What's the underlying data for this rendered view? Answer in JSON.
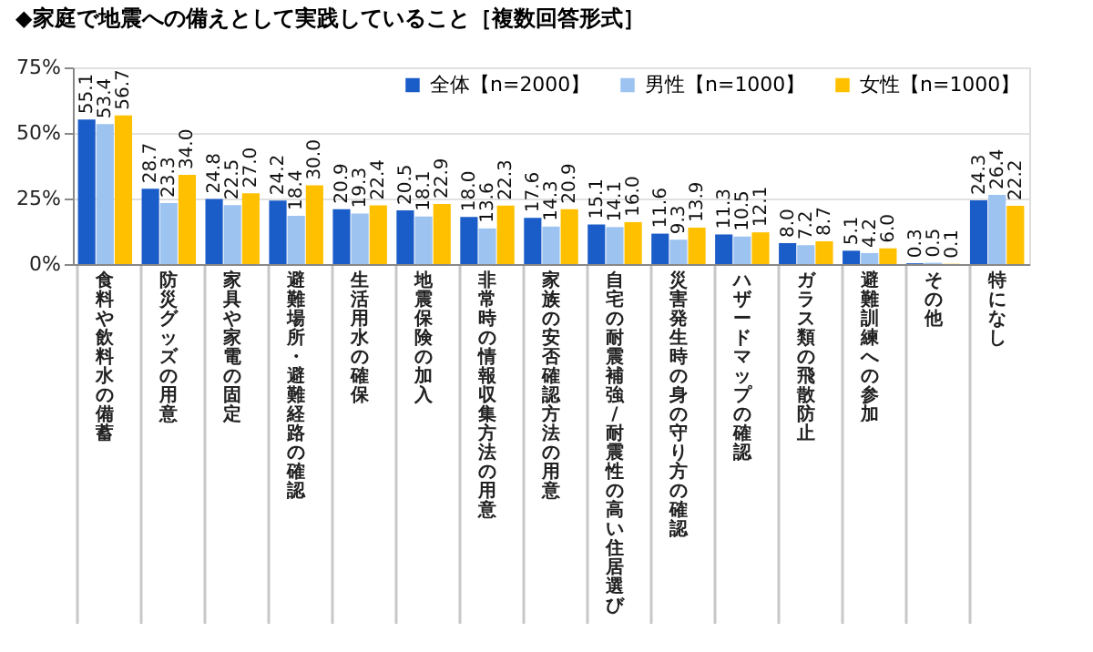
{
  "chart_data": {
    "type": "bar",
    "title": "◆家庭で地震への備えとして実践していること［複数回答形式］",
    "categories": [
      "食料や飲料水の備蓄",
      "防災グッズの用意",
      "家具や家電の固定",
      "避難場所・避難経路の確認",
      "生活用水の確保",
      "地震保険の加入",
      "非常時の情報収集方法の用意",
      "家族の安否確認方法の用意",
      "自宅の耐震補強/耐震性の高い住居選び",
      "災害発生時の身の守り方の確認",
      "ハザードマップの確認",
      "ガラス類の飛散防止",
      "避難訓練への参加",
      "その他",
      "特になし"
    ],
    "series": [
      {
        "name": "全体【n=2000】",
        "color": "#1a5cc8",
        "values": [
          55.1,
          28.7,
          24.8,
          24.2,
          20.9,
          20.5,
          18.0,
          17.6,
          15.1,
          11.6,
          11.3,
          8.0,
          5.1,
          0.3,
          24.3
        ],
        "value_labels": [
          "55.1",
          "28.7",
          "24.8",
          "24.2",
          "20.9",
          "20.5",
          "18.0",
          "17.6",
          "15.1",
          "11.6",
          "11.3",
          "8.0",
          "5.1",
          "0.3",
          "24.3"
        ]
      },
      {
        "name": "男性【n=1000】",
        "color": "#9dc3f0",
        "values": [
          53.4,
          23.3,
          22.5,
          18.4,
          19.3,
          18.1,
          13.6,
          14.3,
          14.1,
          9.3,
          10.5,
          7.2,
          4.2,
          0.5,
          26.4
        ],
        "value_labels": [
          "53.4",
          "23.3",
          "22.5",
          "18.4",
          "19.3",
          "18.1",
          "13.6",
          "14.3",
          "14.1",
          "9.3",
          "10.5",
          "7.2",
          "4.2",
          "0.5",
          "26.4"
        ]
      },
      {
        "name": "女性【n=1000】",
        "color": "#ffc000",
        "values": [
          56.7,
          34.0,
          27.0,
          30.0,
          22.4,
          22.9,
          22.3,
          20.9,
          16.0,
          13.9,
          12.1,
          8.7,
          6.0,
          0.1,
          22.2
        ],
        "value_labels": [
          "56.7",
          "34.0",
          "27.0",
          "30.0",
          "22.4",
          "22.9",
          "22.3",
          "20.9",
          "16.0",
          "13.9",
          "12.1",
          "8.7",
          "6.0",
          "0.1",
          "22.2"
        ]
      }
    ],
    "ylim": [
      0,
      75
    ],
    "yticks": [
      {
        "value": 0,
        "label": "0%"
      },
      {
        "value": 25,
        "label": "25%"
      },
      {
        "value": 50,
        "label": "50%"
      },
      {
        "value": 75,
        "label": "75%"
      }
    ],
    "grid": "y",
    "legend": "top right"
  }
}
